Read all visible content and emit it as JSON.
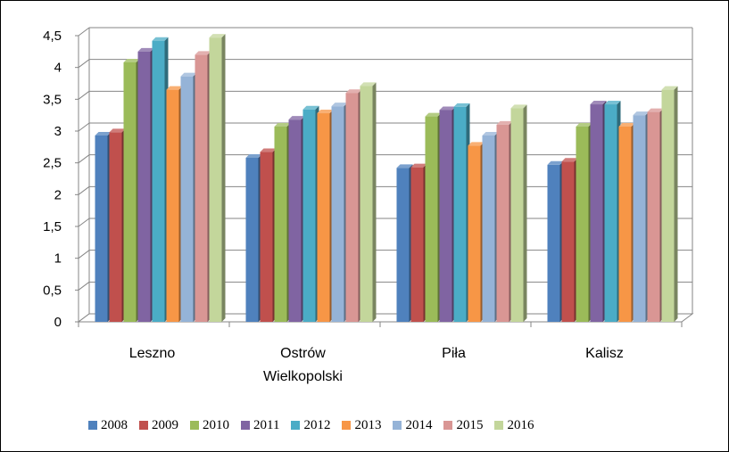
{
  "chart_data": {
    "type": "bar",
    "three_d": true,
    "categories": [
      "Leszno",
      "Ostrów Wielkopolski",
      "Piła",
      "Kalisz"
    ],
    "category_label_lines": [
      [
        "Leszno"
      ],
      [
        "Ostrów",
        "Wielkopolski"
      ],
      [
        "Piła"
      ],
      [
        "Kalisz"
      ]
    ],
    "ylim": [
      0,
      4.5
    ],
    "yticks": [
      "0",
      "0,5",
      "1",
      "1,5",
      "2",
      "2,5",
      "3",
      "3,5",
      "4",
      "4,5"
    ],
    "grid": true,
    "legend_position": "bottom",
    "series": [
      {
        "name": "2008",
        "color": "#4F81BD",
        "values": [
          2.93,
          2.58,
          2.42,
          2.47
        ]
      },
      {
        "name": "2009",
        "color": "#C0504D",
        "values": [
          2.98,
          2.67,
          2.43,
          2.52
        ]
      },
      {
        "name": "2010",
        "color": "#9BBB59",
        "values": [
          4.08,
          3.07,
          3.23,
          3.07
        ]
      },
      {
        "name": "2011",
        "color": "#8064A2",
        "values": [
          4.25,
          3.18,
          3.33,
          3.42
        ]
      },
      {
        "name": "2012",
        "color": "#4BACC6",
        "values": [
          4.42,
          3.34,
          3.38,
          3.42
        ]
      },
      {
        "name": "2013",
        "color": "#F79646",
        "values": [
          3.65,
          3.28,
          2.77,
          3.07
        ]
      },
      {
        "name": "2014",
        "color": "#95B3D7",
        "values": [
          3.86,
          3.39,
          2.93,
          3.25
        ]
      },
      {
        "name": "2015",
        "color": "#D99694",
        "values": [
          4.2,
          3.6,
          3.1,
          3.3
        ]
      },
      {
        "name": "2016",
        "color": "#C3D69B",
        "values": [
          4.47,
          3.71,
          3.36,
          3.65
        ]
      }
    ]
  }
}
